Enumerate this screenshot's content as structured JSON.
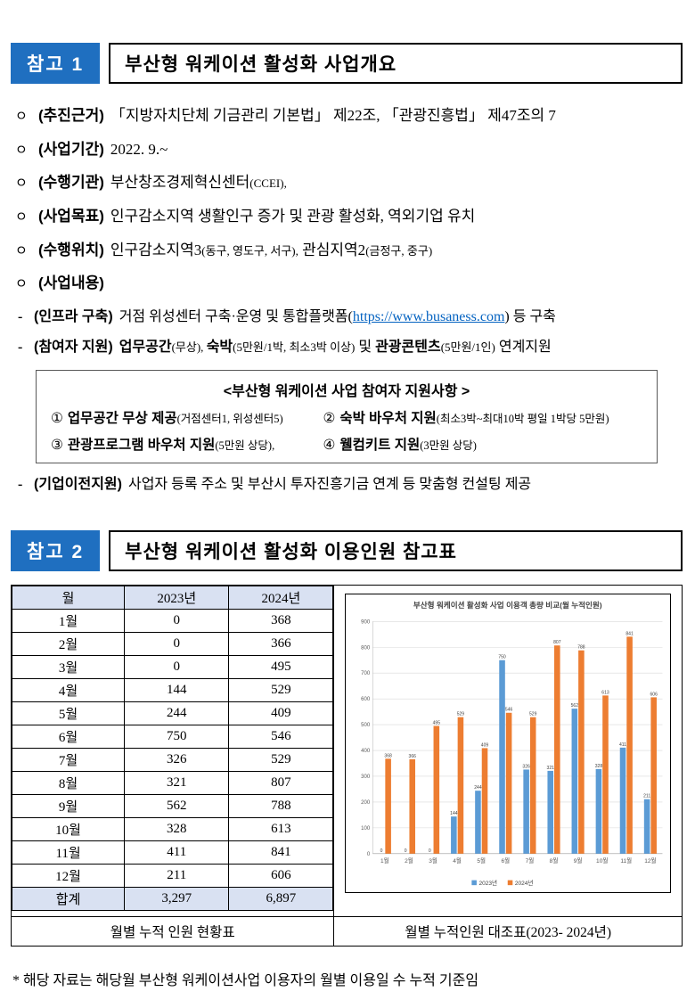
{
  "colors": {
    "badge_blue": "#1F6FC0",
    "table_header_bg": "#D9E1F2",
    "link_blue": "#0563C1",
    "series_2023": "#5B9BD5",
    "series_2024": "#ED7D31"
  },
  "section1": {
    "badge": "참고 1",
    "title": "부산형 워케이션 활성화 사업개요",
    "bullet_marker": "ㅇ",
    "dash_marker": "-",
    "bullets": [
      {
        "label": "(추진근거)",
        "segments": [
          {
            "t": "「지방자치단체 기금관리 기본법」 제22조, 「관광진흥법」 제47조의 7"
          }
        ]
      },
      {
        "label": "(사업기간)",
        "segments": [
          {
            "t": "2022. 9.~"
          }
        ]
      },
      {
        "label": "(수행기관)",
        "segments": [
          {
            "t": "부산창조경제혁신센터"
          },
          {
            "t": "(CCEI),",
            "s": true
          }
        ]
      },
      {
        "label": "(사업목표)",
        "segments": [
          {
            "t": "인구감소지역 생활인구 증가 및 관광 활성화, 역외기업 유치"
          }
        ]
      },
      {
        "label": "(수행위치)",
        "segments": [
          {
            "t": "인구감소지역3"
          },
          {
            "t": "(동구, 영도구, 서구),",
            "s": true
          },
          {
            "t": " 관심지역2"
          },
          {
            "t": "(금정구, 중구)",
            "s": true
          }
        ]
      },
      {
        "label": "(사업내용)",
        "segments": []
      }
    ],
    "dash_items": [
      {
        "label": "(인프라 구축)",
        "segments": [
          {
            "t": "거점 위성센터 구축·운영 및 통합플랫폼("
          },
          {
            "t": "https://www.busaness.com",
            "link": true
          },
          {
            "t": ")"
          },
          {
            "t": " 등 구축"
          }
        ]
      },
      {
        "label": "(참여자 지원)",
        "segments": [
          {
            "t": "업무공간",
            "b": true
          },
          {
            "t": "(무상), ",
            "s": true
          },
          {
            "t": "숙박",
            "b": true
          },
          {
            "t": "(5만원/1박, 최소3박 이상)",
            "s": true
          },
          {
            "t": " 및 "
          },
          {
            "t": "관광콘텐츠",
            "b": true
          },
          {
            "t": "(5만원/1인)",
            "s": true
          },
          {
            "t": " 연계지원"
          }
        ]
      }
    ],
    "support_box": {
      "title": "<부산형 워케이션 사업 참여자 지원사항 >",
      "items": [
        {
          "num": "①",
          "name": "업무공간 무상 제공",
          "detail": "(거점센터1, 위성센터5)"
        },
        {
          "num": "②",
          "name": "숙박 바우처 지원",
          "detail": "(최소3박~최대10박 평일 1박당 5만원)"
        },
        {
          "num": "③",
          "name": "관광프로그램 바우처 지원",
          "detail": "(5만원 상당),"
        },
        {
          "num": "④",
          "name": "웰컴키트 지원",
          "detail": "(3만원 상당)"
        }
      ]
    },
    "relocation": {
      "label": "(기업이전지원)",
      "segments": [
        {
          "t": "사업자 등록 주소 및 부산시 투자진흥기금 연계 등 맞춤형 컨설팅 제공"
        }
      ]
    }
  },
  "section2": {
    "badge": "참고 2",
    "title": "부산형 워케이션 활성화 이용인원 참고표",
    "table": {
      "headers": [
        "월",
        "2023년",
        "2024년"
      ],
      "rows": [
        [
          "1월",
          "0",
          "368"
        ],
        [
          "2월",
          "0",
          "366"
        ],
        [
          "3월",
          "0",
          "495"
        ],
        [
          "4월",
          "144",
          "529"
        ],
        [
          "5월",
          "244",
          "409"
        ],
        [
          "6월",
          "750",
          "546"
        ],
        [
          "7월",
          "326",
          "529"
        ],
        [
          "8월",
          "321",
          "807"
        ],
        [
          "9월",
          "562",
          "788"
        ],
        [
          "10월",
          "328",
          "613"
        ],
        [
          "11월",
          "411",
          "841"
        ],
        [
          "12월",
          "211",
          "606"
        ]
      ],
      "total_row": [
        "합계",
        "3,297",
        "6,897"
      ],
      "caption": "월별 누적 인원 현황표"
    },
    "chart_caption": "월별 누적인원 대조표(2023- 2024년)"
  },
  "chart_data": {
    "type": "bar",
    "title": "부산형 워케이션 활성화 사업 이용객 총량 비교(월 누적인원)",
    "categories": [
      "1월",
      "2월",
      "3월",
      "4월",
      "5월",
      "6월",
      "7월",
      "8월",
      "9월",
      "10월",
      "11월",
      "12월"
    ],
    "series": [
      {
        "name": "2023년",
        "color": "#5B9BD5",
        "values": [
          0,
          0,
          0,
          144,
          244,
          750,
          326,
          321,
          562,
          328,
          411,
          211
        ]
      },
      {
        "name": "2024년",
        "color": "#ED7D31",
        "values": [
          368,
          366,
          495,
          529,
          409,
          546,
          529,
          807,
          788,
          613,
          841,
          606
        ]
      }
    ],
    "xlabel": "",
    "ylabel": "",
    "ylim": [
      0,
      900
    ],
    "ytick_step": 100,
    "grid": true,
    "legend_position": "bottom",
    "data_labels": true
  },
  "footnote": "* 해당 자료는 해당월 부산형 워케이션사업 이용자의 월별 이용일 수 누적 기준임"
}
